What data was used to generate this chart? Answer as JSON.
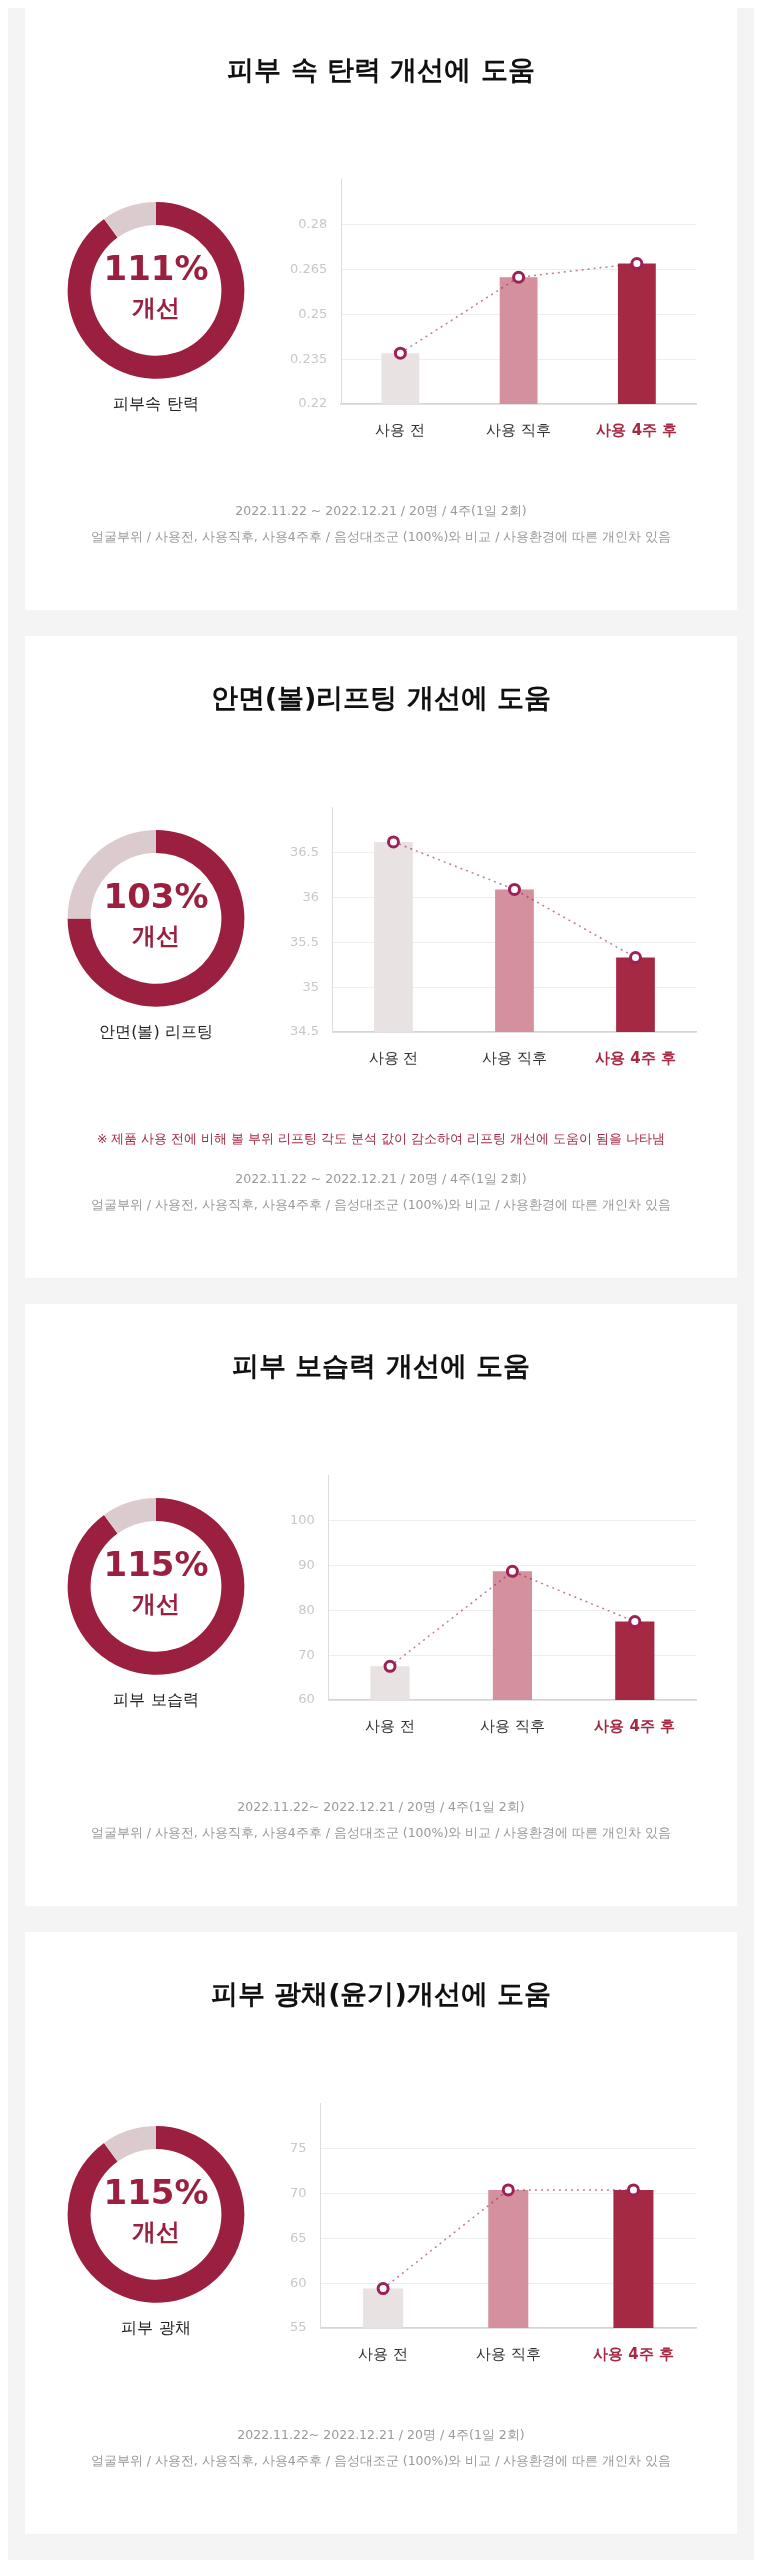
{
  "chart_data": [
    {
      "type": "donut",
      "title": "피부속 탄력",
      "categories": [
        null,
        null
      ],
      "values": [
        90,
        10
      ],
      "colors": [
        "#9b1f3f",
        "#dccbce"
      ],
      "annotations": [
        "111%",
        "개선"
      ]
    },
    {
      "type": "bar",
      "title": "피부 속 탄력 개선에 도움",
      "categories": [
        "사용 전",
        "사용 직후",
        "사용 4주 후"
      ],
      "series": [
        {
          "type": "bar",
          "colors": [
            "#e8e2e2",
            "#d4909c",
            "#a52943"
          ],
          "values": [
            0.237,
            0.2624,
            0.267
          ]
        },
        {
          "type": "line",
          "color": "#9c2157",
          "values": [
            0.237,
            0.2624,
            0.267
          ],
          "marker": "circle",
          "line_style": "dotted"
        }
      ],
      "ylim": [
        0.22,
        0.295
      ],
      "yticks": [
        0.22,
        0.235,
        0.25,
        0.265,
        0.28
      ],
      "grid": "y",
      "legend": false,
      "annotations": [
        "2022.11.22 ~ 2022.12.21 / 20명 / 4주(1일 2회)",
        "얼굴부위 / 사용전, 사용직후, 사용4주후 / 음성대조군 (100%)와 비교 / 사용환경에 따른 개인차 있음"
      ]
    },
    {
      "type": "donut",
      "title": "안면(볼) 리프팅",
      "categories": [
        null,
        null
      ],
      "values": [
        75,
        25
      ],
      "colors": [
        "#9b1f3f",
        "#dccbce"
      ],
      "annotations": [
        "103%",
        "개선"
      ]
    },
    {
      "type": "bar",
      "title": "안면(볼)리프팅 개선에 도움",
      "categories": [
        "사용 전",
        "사용 직후",
        "사용 4주 후"
      ],
      "series": [
        {
          "type": "bar",
          "colors": [
            "#e8e2e2",
            "#d4909c",
            "#a52943"
          ],
          "values": [
            36.62,
            36.09,
            35.33
          ]
        },
        {
          "type": "line",
          "color": "#9c2157",
          "values": [
            36.62,
            36.09,
            35.33
          ],
          "marker": "circle",
          "line_style": "dotted"
        }
      ],
      "ylim": [
        34.5,
        37
      ],
      "yticks": [
        34.5,
        35,
        35.5,
        36,
        36.5
      ],
      "grid": "y",
      "legend": false,
      "annotations": [
        "※ 제품 사용 전에 비해 볼 부위 리프팅 각도 분석 값이 감소하여 리프팅 개선에 도움이 됨을 나타냄",
        "2022.11.22 ~ 2022.12.21 / 20명 / 4주(1일 2회)",
        "얼굴부위 / 사용전, 사용직후, 사용4주후 / 음성대조군 (100%)와 비교 / 사용환경에 따른 개인차 있음"
      ]
    },
    {
      "type": "donut",
      "title": "피부 보습력",
      "categories": [
        null,
        null
      ],
      "values": [
        90,
        10
      ],
      "colors": [
        "#9b1f3f",
        "#dccbce"
      ],
      "annotations": [
        "115%",
        "개선"
      ]
    },
    {
      "type": "bar",
      "title": "피부 보습력 개선에 도움",
      "categories": [
        "사용 전",
        "사용 직후",
        "사용 4주 후"
      ],
      "series": [
        {
          "type": "bar",
          "colors": [
            "#e8e2e2",
            "#d4909c",
            "#a52943"
          ],
          "values": [
            67.5,
            88.7,
            77.5
          ]
        },
        {
          "type": "line",
          "color": "#9c2157",
          "values": [
            67.5,
            88.7,
            77.5
          ],
          "marker": "circle",
          "line_style": "dotted"
        }
      ],
      "ylim": [
        60,
        110
      ],
      "yticks": [
        60,
        70,
        80,
        90,
        100
      ],
      "grid": "y",
      "legend": false,
      "annotations": [
        "2022.11.22~ 2022.12.21 / 20명 / 4주(1일 2회)",
        "얼굴부위 / 사용전, 사용직후, 사용4주후 / 음성대조군 (100%)와 비교 / 사용환경에 따른 개인차 있음"
      ]
    },
    {
      "type": "donut",
      "title": "피부 광채",
      "categories": [
        null,
        null
      ],
      "values": [
        90,
        10
      ],
      "colors": [
        "#9b1f3f",
        "#dccbce"
      ],
      "annotations": [
        "115%",
        "개선"
      ]
    },
    {
      "type": "bar",
      "title": "피부 광채(윤기)개선에 도움",
      "categories": [
        "사용 전",
        "사용 직후",
        "사용 4주 후"
      ],
      "series": [
        {
          "type": "bar",
          "colors": [
            "#e8e2e2",
            "#d4909c",
            "#a52943"
          ],
          "values": [
            59.4,
            70.4,
            70.4
          ]
        },
        {
          "type": "line",
          "color": "#9c2157",
          "values": [
            59.4,
            70.4,
            70.4
          ],
          "marker": "circle",
          "line_style": "dotted"
        }
      ],
      "ylim": [
        55,
        80
      ],
      "yticks": [
        55,
        60,
        65,
        70,
        75
      ],
      "grid": "y",
      "legend": false,
      "annotations": [
        "2022.11.22~ 2022.12.21 / 20명 / 4주(1일 2회)",
        "얼굴부위 / 사용전, 사용직후, 사용4주후 / 음성대조군 (100%)와 비교 / 사용환경에 따른 개인차 있음"
      ]
    }
  ]
}
